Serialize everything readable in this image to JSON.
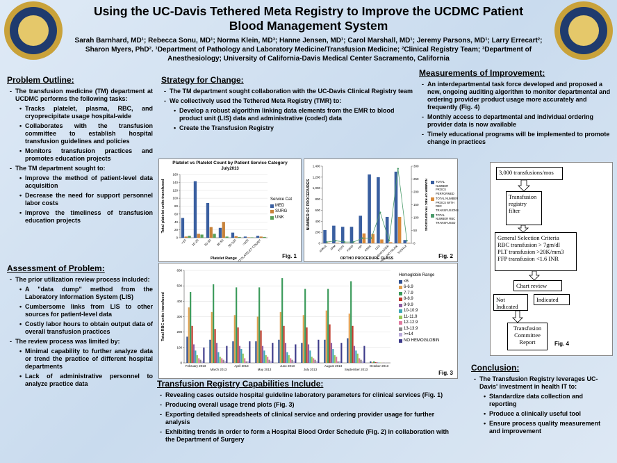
{
  "header": {
    "title": "Using the UC-Davis Tethered Meta Registry to Improve the UCDMC Patient Blood Management System",
    "authors": "Sarah Barnhard, MD¹; Rebecca Sonu, MD¹; Norma Klein, MD³; Hanne Jensen, MD¹; Carol Marshall, MD¹; Jeremy Parsons, MD¹; Larry Errecart²; Sharon Myers, PhD². ¹Department of Pathology and Laboratory Medicine/Transfusion Medicine; ²Clinical Registry Team; ³Department of Anesthesiology; University of California-Davis Medical Center Sacramento, California"
  },
  "sections": {
    "problem_outline": {
      "heading": "Problem Outline:",
      "items": [
        {
          "text": "The transfusion medicine (TM) department at UCDMC performs the following tasks:",
          "items": [
            "Tracks platelet, plasma, RBC, and cryoprecipitate usage hospital-wide",
            "Collaborates with the transfusion committee to establish hospital transfusion guidelines and policies",
            "Monitors transfusion practices and promotes education projects"
          ]
        },
        {
          "text": "The TM department sought to:",
          "items": [
            "Improve the method of patient-level data acquisition",
            "Decrease the need for support personnel labor costs",
            "Improve the timeliness of transfusion education projects"
          ]
        }
      ]
    },
    "assessment": {
      "heading": "Assessment of Problem:",
      "items": [
        {
          "text": "The prior utilization review process included:",
          "items": [
            "A \"data dump\" method from the Laboratory Information System (LIS)",
            "Cumbersome links from LIS to other sources for patient-level data",
            "Costly labor hours to obtain output data of overall transfusion practices"
          ]
        },
        {
          "text": "The review process was limited by:",
          "items": [
            "Minimal capability to further analyze data or trend the practice of different hospital departments",
            "Lack of administrative personnel to analyze practice data"
          ]
        }
      ]
    },
    "strategy": {
      "heading": "Strategy for Change:",
      "items": [
        {
          "text": "The TM department sought collaboration with the UC-Davis Clinical Registry team"
        },
        {
          "text": "We collectively used the Tethered Meta Registry (TMR) to:",
          "items": [
            "Develop a robust algorithm linking data elements from the EMR to blood product unit (LIS) data and administrative (coded) data",
            "Create the Transfusion Registry"
          ]
        }
      ]
    },
    "measurements": {
      "heading": "Measurements of Improvement:",
      "items": [
        {
          "text": "An interdepartmental task force developed and proposed a new, ongoing auditing algorithm to monitor departmental and ordering provider product usage more accurately and frequently (Fig. 4)"
        },
        {
          "text": "Monthly access to departmental and individual ordering provider data is now available"
        },
        {
          "text": "Timely educational programs will be implemented to promote change in practices"
        }
      ]
    },
    "capabilities": {
      "heading": "Transfusion Registry Capabilities Include:",
      "items": [
        {
          "text": "Revealing cases outside hospital guideline laboratory parameters for clinical services (Fig. 1)"
        },
        {
          "text": "Producing overall usage trend plots (Fig. 3)"
        },
        {
          "text": "Exporting detailed spreadsheets of clinical service and ordering provider usage for further analysis"
        },
        {
          "text": "Exhibiting trends in order to form a Hospital Blood Order Schedule (Fig. 2) in collaboration with the Department of Surgery"
        }
      ]
    },
    "conclusion": {
      "heading": "Conclusion:",
      "items": [
        {
          "text": "The Transfusion Registry leverages UC-Davis' investment in health IT to:",
          "items": [
            "Standardize data collection and reporting",
            "Produce a clinically useful tool",
            "Ensure process quality measurement and improvement"
          ]
        }
      ]
    }
  },
  "chart_data": [
    {
      "type": "bar",
      "title": "Platelet vs Platelet Count by Patient Service Category",
      "subtitle": "July2013",
      "categories": [
        "<10",
        "10-20",
        "20-30",
        "30-50",
        "50-100",
        ">100",
        "NO PLATELET COUNT"
      ],
      "series": [
        {
          "name": "MED",
          "color": "#3a5fa0",
          "values": [
            50,
            143,
            88,
            25,
            13,
            3,
            5
          ]
        },
        {
          "name": "SURG",
          "color": "#c8823a",
          "values": [
            3,
            10,
            27,
            40,
            4,
            1,
            3
          ]
        },
        {
          "name": "UNK",
          "color": "#5aa05a",
          "values": [
            5,
            8,
            10,
            3,
            2,
            1,
            2
          ]
        }
      ],
      "ylim": [
        0,
        160
      ],
      "yticks": [
        0,
        20,
        40,
        60,
        80,
        100,
        120,
        140,
        160
      ],
      "ylabel": "Total platelet units transfused",
      "xlabel": "Platelet Range",
      "legend_title": "Service Cat",
      "grid": true,
      "figure_label": "Fig. 1"
    },
    {
      "type": "bar",
      "categories": [
        "ANKLE",
        "ARM",
        "FOOT",
        "HAND",
        "HIP",
        "KNEE",
        "LEG",
        "SHOULDER",
        "SPINE AND TRUNK",
        "THORAX"
      ],
      "series": [
        {
          "name": "TOTAL NUMBER PROCS PERFORMED",
          "color": "#3a5fa0",
          "values": [
            240,
            320,
            300,
            300,
            500,
            1250,
            1200,
            480,
            1300,
            60
          ]
        },
        {
          "name": "TOTAL NUMBER PROCS WITH RBC TRANSFUSIONS",
          "color": "#d98a3a",
          "values": [
            10,
            10,
            5,
            5,
            180,
            170,
            70,
            20,
            480,
            10
          ]
        },
        {
          "name": "TOTAL NUMBER RBC TRANSFUSED",
          "color": "#4a9a6a",
          "type": "line",
          "axis": "y2",
          "values": [
            5,
            10,
            5,
            5,
            20,
            20,
            120,
            10,
            290,
            10
          ]
        }
      ],
      "ylim": [
        0,
        1400
      ],
      "yticks": [
        0,
        200,
        400,
        600,
        800,
        {
          "value": 1000,
          "label": "1,000"
        },
        {
          "value": 1200,
          "label": "1,200"
        },
        {
          "value": 1400,
          "label": "1,400"
        }
      ],
      "y2lim": [
        0,
        300
      ],
      "y2ticks": [
        0,
        50,
        100,
        150,
        200,
        250,
        300
      ],
      "ylabel": "NUMBER OF PROCEDURES",
      "y2label": "NUMBER OF RBC TRANSFUSIONS",
      "xlabel": "ORTHO PROCEDURE CLASS",
      "grid": false,
      "figure_label": "Fig. 2"
    },
    {
      "type": "bar",
      "categories": [
        "February 2013",
        "March 2013",
        "April 2013",
        "May 2013",
        "June 2013",
        "July 2013",
        "August 2013",
        "September 2013",
        "October 2013"
      ],
      "series": [
        {
          "name": "<6",
          "color": "#2f4f8f",
          "values": [
            170,
            150,
            140,
            140,
            150,
            130,
            150,
            160,
            10
          ]
        },
        {
          "name": "6-6.9",
          "color": "#e0a050",
          "values": [
            360,
            330,
            310,
            300,
            330,
            310,
            340,
            320,
            5
          ]
        },
        {
          "name": "7-7.9",
          "color": "#3a9a5a",
          "values": [
            460,
            510,
            490,
            490,
            550,
            480,
            480,
            530,
            10
          ]
        },
        {
          "name": "8-8.9",
          "color": "#c0392b",
          "values": [
            240,
            220,
            230,
            210,
            240,
            230,
            250,
            240,
            5
          ]
        },
        {
          "name": "9-9.9",
          "color": "#8e5ea2",
          "values": [
            120,
            130,
            110,
            110,
            130,
            120,
            130,
            110,
            3
          ]
        },
        {
          "name": "10-10.9",
          "color": "#3fa8b8",
          "values": [
            80,
            70,
            90,
            80,
            70,
            80,
            90,
            80,
            2
          ]
        },
        {
          "name": "11-11.9",
          "color": "#9ac85a",
          "values": [
            50,
            40,
            60,
            50,
            50,
            40,
            50,
            60,
            2
          ]
        },
        {
          "name": "12-12.9",
          "color": "#e07aa0",
          "values": [
            30,
            30,
            30,
            40,
            30,
            30,
            40,
            30,
            1
          ]
        },
        {
          "name": "13-13.9",
          "color": "#888888",
          "values": [
            20,
            20,
            10,
            20,
            20,
            20,
            10,
            20,
            1
          ]
        },
        {
          "name": ">=14",
          "color": "#b9a9d9",
          "values": [
            10,
            10,
            10,
            10,
            10,
            10,
            10,
            10,
            1
          ]
        },
        {
          "name": "NO HEMOGLOBIN",
          "color": "#3d3a8a",
          "values": [
            100,
            110,
            140,
            130,
            120,
            150,
            130,
            110,
            0
          ]
        }
      ],
      "ylim": [
        0,
        600
      ],
      "yticks": [
        0,
        100,
        200,
        300,
        400,
        500,
        600
      ],
      "ylabel": "Total RBC units transfused",
      "legend_title": "Hemoglobin Range",
      "grid": true,
      "figure_label": "Fig. 3"
    }
  ],
  "flowchart": {
    "nodes": [
      "3,000 transfusions/mos",
      "Transfusion registry filter",
      "General Selection Criteria",
      "RBC transfusion > 7gm/dl",
      "PLT transfusion >20K/mm3",
      "FFP transfusion <1.6 INR",
      "Chart review",
      "Not Indicated",
      "Indicated",
      "Transfusion Committee Report"
    ],
    "label": "Fig. 4"
  }
}
